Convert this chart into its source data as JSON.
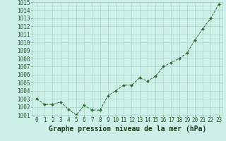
{
  "x": [
    0,
    1,
    2,
    3,
    4,
    5,
    6,
    7,
    8,
    9,
    10,
    11,
    12,
    13,
    14,
    15,
    16,
    17,
    18,
    19,
    20,
    21,
    22,
    23
  ],
  "y": [
    1003.0,
    1002.3,
    1002.3,
    1002.6,
    1001.7,
    1001.0,
    1002.2,
    1001.6,
    1001.6,
    1003.4,
    1004.0,
    1004.7,
    1004.7,
    1005.6,
    1005.2,
    1005.8,
    1007.0,
    1007.5,
    1008.0,
    1008.7,
    1010.3,
    1011.7,
    1013.0,
    1014.7
  ],
  "line_color": "#2d6a2d",
  "marker_color": "#2d6a2d",
  "bg_color": "#cdf0e8",
  "grid_color": "#a8d8cc",
  "xlabel": "Graphe pression niveau de la mer (hPa)",
  "xlabel_color": "#1a3a1a",
  "tick_label_color": "#2d5a2d",
  "ylim": [
    1001,
    1015
  ],
  "xlim": [
    -0.5,
    23.5
  ],
  "yticks": [
    1001,
    1002,
    1003,
    1004,
    1005,
    1006,
    1007,
    1008,
    1009,
    1010,
    1011,
    1012,
    1013,
    1014,
    1015
  ],
  "xticks": [
    0,
    1,
    2,
    3,
    4,
    5,
    6,
    7,
    8,
    9,
    10,
    11,
    12,
    13,
    14,
    15,
    16,
    17,
    18,
    19,
    20,
    21,
    22,
    23
  ],
  "tick_fontsize": 5.5,
  "xlabel_fontsize": 7.0
}
